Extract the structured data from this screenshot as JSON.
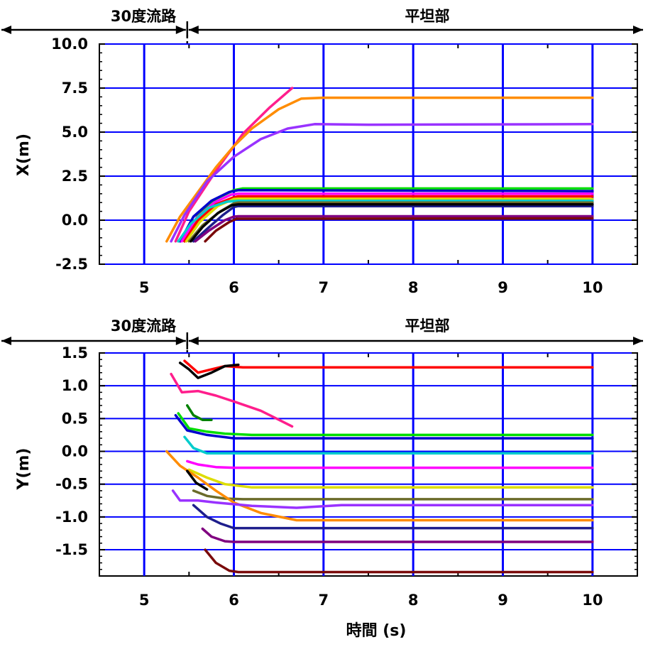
{
  "chart_data": [
    {
      "type": "line",
      "ylabel": "X(m)",
      "xlim": [
        4.5,
        10.5
      ],
      "ylim": [
        -2.5,
        10.0
      ],
      "xticks": [
        "5",
        "6",
        "7",
        "8",
        "9",
        "10"
      ],
      "yticks": [
        "-2.5",
        "0.0",
        "2.5",
        "5.0",
        "7.5",
        "10.0"
      ],
      "grid": true,
      "grid_color": "#0000ff",
      "annotations": {
        "left_region": "30度流路",
        "right_region": "平坦部",
        "boundary_x": 5.48
      },
      "series": [
        {
          "color": "#ff1e8c",
          "points": [
            [
              5.35,
              -1.2
            ],
            [
              5.5,
              0.5
            ],
            [
              5.8,
              2.8
            ],
            [
              6.1,
              4.9
            ],
            [
              6.4,
              6.4
            ],
            [
              6.65,
              7.5
            ]
          ]
        },
        {
          "color": "#ff8c00",
          "points": [
            [
              5.25,
              -1.2
            ],
            [
              5.4,
              0.2
            ],
            [
              5.6,
              1.6
            ],
            [
              5.8,
              3.0
            ],
            [
              6.0,
              4.2
            ],
            [
              6.2,
              5.2
            ],
            [
              6.5,
              6.3
            ],
            [
              6.75,
              6.9
            ],
            [
              7.0,
              6.95
            ],
            [
              10.0,
              6.95
            ]
          ]
        },
        {
          "color": "#9932ff",
          "points": [
            [
              5.3,
              -1.2
            ],
            [
              5.45,
              0.3
            ],
            [
              5.7,
              2.2
            ],
            [
              6.0,
              3.6
            ],
            [
              6.3,
              4.6
            ],
            [
              6.6,
              5.2
            ],
            [
              6.9,
              5.45
            ],
            [
              7.5,
              5.42
            ],
            [
              10.0,
              5.45
            ]
          ]
        },
        {
          "color": "#00dd00",
          "points": [
            [
              5.45,
              -1.2
            ],
            [
              5.6,
              0.3
            ],
            [
              5.8,
              1.2
            ],
            [
              6.0,
              1.7
            ],
            [
              6.1,
              1.8
            ],
            [
              10.0,
              1.8
            ]
          ]
        },
        {
          "color": "#0000cd",
          "points": [
            [
              5.4,
              -1.2
            ],
            [
              5.55,
              0.2
            ],
            [
              5.75,
              1.1
            ],
            [
              5.95,
              1.6
            ],
            [
              6.05,
              1.7
            ],
            [
              10.0,
              1.65
            ]
          ]
        },
        {
          "color": "#ff00ff",
          "points": [
            [
              5.42,
              -1.2
            ],
            [
              5.58,
              0.1
            ],
            [
              5.78,
              1.0
            ],
            [
              5.97,
              1.45
            ],
            [
              6.05,
              1.5
            ],
            [
              10.0,
              1.5
            ]
          ]
        },
        {
          "color": "#ff0000",
          "points": [
            [
              5.45,
              -1.2
            ],
            [
              5.6,
              0.0
            ],
            [
              5.8,
              0.9
            ],
            [
              6.0,
              1.3
            ],
            [
              6.05,
              1.35
            ],
            [
              10.0,
              1.35
            ]
          ]
        },
        {
          "color": "#dddd00",
          "points": [
            [
              5.47,
              -1.2
            ],
            [
              5.62,
              -0.1
            ],
            [
              5.82,
              0.8
            ],
            [
              6.0,
              1.2
            ],
            [
              6.05,
              1.22
            ],
            [
              10.0,
              1.2
            ]
          ]
        },
        {
          "color": "#00cccc",
          "points": [
            [
              5.38,
              -1.2
            ],
            [
              5.52,
              -0.2
            ],
            [
              5.72,
              0.7
            ],
            [
              5.92,
              1.05
            ],
            [
              6.05,
              1.1
            ],
            [
              10.0,
              1.1
            ]
          ]
        },
        {
          "color": "#6b6b2a",
          "points": [
            [
              5.5,
              -1.2
            ],
            [
              5.65,
              -0.3
            ],
            [
              5.85,
              0.5
            ],
            [
              6.0,
              0.95
            ],
            [
              6.05,
              1.0
            ],
            [
              10.0,
              1.0
            ]
          ]
        },
        {
          "color": "#1e1e8c",
          "points": [
            [
              5.55,
              -1.2
            ],
            [
              5.7,
              -0.5
            ],
            [
              5.88,
              0.3
            ],
            [
              6.0,
              0.75
            ],
            [
              6.05,
              0.8
            ],
            [
              10.0,
              0.8
            ]
          ]
        },
        {
          "color": "#000000",
          "points": [
            [
              5.52,
              -1.2
            ],
            [
              5.65,
              -0.4
            ],
            [
              5.82,
              0.4
            ],
            [
              5.98,
              0.85
            ],
            [
              6.05,
              0.9
            ],
            [
              10.0,
              0.9
            ]
          ]
        },
        {
          "color": "#800080",
          "points": [
            [
              5.57,
              -1.2
            ],
            [
              5.72,
              -0.6
            ],
            [
              5.9,
              0.0
            ],
            [
              6.0,
              0.2
            ],
            [
              6.05,
              0.22
            ],
            [
              10.0,
              0.22
            ]
          ]
        },
        {
          "color": "#7a0a0a",
          "points": [
            [
              5.68,
              -1.2
            ],
            [
              5.8,
              -0.6
            ],
            [
              5.95,
              -0.1
            ],
            [
              6.03,
              0.08
            ],
            [
              10.0,
              0.1
            ]
          ]
        }
      ]
    },
    {
      "type": "line",
      "xlabel": "時間 (s)",
      "ylabel": "Y(m)",
      "xlim": [
        4.5,
        10.5
      ],
      "ylim": [
        -1.9,
        1.5
      ],
      "xticks": [
        "5",
        "6",
        "7",
        "8",
        "9",
        "10"
      ],
      "yticks": [
        "-1.5",
        "-1.0",
        "-0.5",
        "0.0",
        "0.5",
        "1.0",
        "1.5"
      ],
      "grid": true,
      "grid_color": "#0000ff",
      "annotations": {
        "left_region": "30度流路",
        "right_region": "平坦部",
        "boundary_x": 5.48
      },
      "series": [
        {
          "color": "#ff0000",
          "points": [
            [
              5.45,
              1.38
            ],
            [
              5.6,
              1.2
            ],
            [
              5.75,
              1.25
            ],
            [
              5.9,
              1.3
            ],
            [
              6.1,
              1.28
            ],
            [
              10.0,
              1.28
            ]
          ]
        },
        {
          "color": "#000000",
          "points": [
            [
              5.4,
              1.35
            ],
            [
              5.5,
              1.25
            ],
            [
              5.6,
              1.12
            ],
            [
              5.75,
              1.2
            ],
            [
              5.9,
              1.3
            ],
            [
              6.05,
              1.32
            ]
          ]
        },
        {
          "color": "#ff1e8c",
          "points": [
            [
              5.3,
              1.18
            ],
            [
              5.42,
              0.9
            ],
            [
              5.6,
              0.92
            ],
            [
              5.8,
              0.85
            ],
            [
              6.0,
              0.76
            ],
            [
              6.3,
              0.62
            ],
            [
              6.65,
              0.38
            ]
          ]
        },
        {
          "color": "#008000",
          "points": [
            [
              5.48,
              0.7
            ],
            [
              5.55,
              0.55
            ],
            [
              5.65,
              0.48
            ],
            [
              5.75,
              0.48
            ]
          ]
        },
        {
          "color": "#00dd00",
          "points": [
            [
              5.38,
              0.58
            ],
            [
              5.5,
              0.35
            ],
            [
              5.7,
              0.3
            ],
            [
              5.9,
              0.27
            ],
            [
              6.2,
              0.25
            ],
            [
              10.0,
              0.25
            ]
          ]
        },
        {
          "color": "#0000cd",
          "points": [
            [
              5.35,
              0.55
            ],
            [
              5.48,
              0.32
            ],
            [
              5.7,
              0.25
            ],
            [
              6.0,
              0.2
            ],
            [
              10.0,
              0.2
            ]
          ]
        },
        {
          "color": "#00cccc",
          "points": [
            [
              5.45,
              0.22
            ],
            [
              5.55,
              0.05
            ],
            [
              5.7,
              -0.03
            ],
            [
              6.0,
              -0.03
            ],
            [
              10.0,
              -0.03
            ]
          ]
        },
        {
          "color": "#ff00ff",
          "points": [
            [
              5.48,
              -0.15
            ],
            [
              5.6,
              -0.2
            ],
            [
              5.8,
              -0.24
            ],
            [
              6.0,
              -0.25
            ],
            [
              10.0,
              -0.25
            ]
          ]
        },
        {
          "color": "#dddd00",
          "points": [
            [
              5.5,
              -0.28
            ],
            [
              5.7,
              -0.4
            ],
            [
              5.9,
              -0.5
            ],
            [
              6.2,
              -0.55
            ],
            [
              10.0,
              -0.55
            ]
          ]
        },
        {
          "color": "#6b6b2a",
          "points": [
            [
              5.55,
              -0.6
            ],
            [
              5.7,
              -0.68
            ],
            [
              5.9,
              -0.72
            ],
            [
              6.1,
              -0.73
            ],
            [
              10.0,
              -0.73
            ]
          ]
        },
        {
          "color": "#ff8c00",
          "points": [
            [
              5.25,
              0.0
            ],
            [
              5.4,
              -0.22
            ],
            [
              5.6,
              -0.4
            ],
            [
              5.8,
              -0.6
            ],
            [
              6.0,
              -0.78
            ],
            [
              6.3,
              -0.94
            ],
            [
              6.7,
              -1.05
            ],
            [
              10.0,
              -1.05
            ]
          ]
        },
        {
          "color": "#9932ff",
          "points": [
            [
              5.32,
              -0.6
            ],
            [
              5.4,
              -0.75
            ],
            [
              5.6,
              -0.75
            ],
            [
              5.8,
              -0.78
            ],
            [
              6.2,
              -0.83
            ],
            [
              6.7,
              -0.86
            ],
            [
              7.2,
              -0.82
            ],
            [
              10.0,
              -0.82
            ]
          ]
        },
        {
          "color": "#000000",
          "points": [
            [
              5.48,
              -0.3
            ],
            [
              5.58,
              -0.48
            ],
            [
              5.7,
              -0.58
            ]
          ]
        },
        {
          "color": "#1e1e8c",
          "points": [
            [
              5.55,
              -0.82
            ],
            [
              5.7,
              -1.0
            ],
            [
              5.85,
              -1.1
            ],
            [
              6.0,
              -1.17
            ],
            [
              10.0,
              -1.17
            ]
          ]
        },
        {
          "color": "#800080",
          "points": [
            [
              5.65,
              -1.18
            ],
            [
              5.75,
              -1.3
            ],
            [
              5.9,
              -1.37
            ],
            [
              6.0,
              -1.38
            ],
            [
              10.0,
              -1.38
            ]
          ]
        },
        {
          "color": "#7a0a0a",
          "points": [
            [
              5.68,
              -1.5
            ],
            [
              5.8,
              -1.7
            ],
            [
              5.95,
              -1.82
            ],
            [
              6.05,
              -1.84
            ],
            [
              10.0,
              -1.84
            ]
          ]
        }
      ]
    }
  ]
}
